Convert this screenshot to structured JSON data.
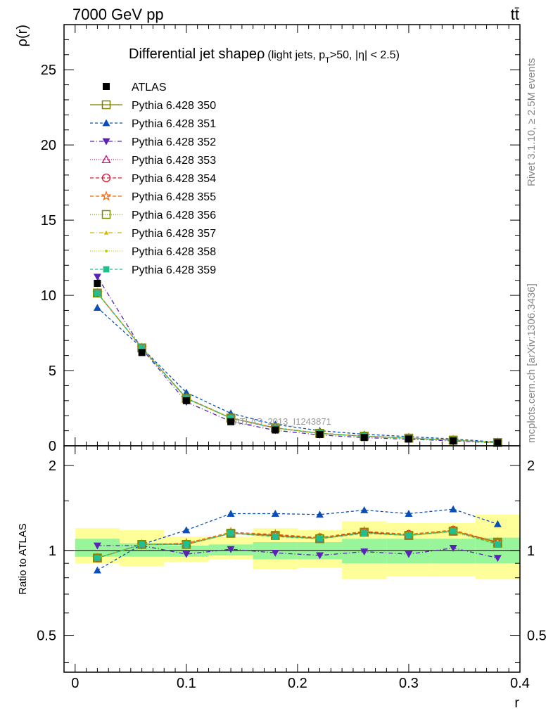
{
  "header": {
    "left": "7000 GeV pp",
    "right": "tt̄"
  },
  "side_labels": {
    "rivet": "Rivet 3.1.10, ≥ 2.5M events",
    "mcplots": "mcplots.cern.ch [arXiv:1306.3436]"
  },
  "chart_data": {
    "type": "line",
    "title_main": "Differential jet shape",
    "title_rho": "ρ",
    "title_detail_a": "(light jets, p",
    "title_detail_sub": "T",
    "title_detail_b": ">50, |η| < 2.5)",
    "watermark": "ATLAS_2013_I1243871",
    "ylabel": "ρ(r)",
    "xlabel": "r",
    "ratio_ylabel": "Ratio to ATLAS",
    "xlim": [
      -0.01,
      0.4
    ],
    "ylim": [
      0,
      28
    ],
    "ratio_ylim": [
      0.37,
      2.35
    ],
    "x_ticks": [
      "0",
      "0.1",
      "0.2",
      "0.3",
      "0.4"
    ],
    "y_ticks": [
      "0",
      "5",
      "10",
      "15",
      "20",
      "25"
    ],
    "ratio_ticks": [
      "0.5",
      "1",
      "2"
    ],
    "bin_edges": [
      0,
      0.04,
      0.08,
      0.12,
      0.16,
      0.2,
      0.24,
      0.28,
      0.32,
      0.36,
      0.4
    ],
    "x": [
      0.02,
      0.06,
      0.1,
      0.14,
      0.18,
      0.22,
      0.26,
      0.3,
      0.34,
      0.38
    ],
    "data": {
      "name": "ATLAS",
      "values": [
        10.8,
        6.2,
        3.0,
        1.6,
        1.05,
        0.75,
        0.55,
        0.45,
        0.32,
        0.2
      ],
      "band_inner": [
        [
          0.95,
          1.1
        ],
        [
          0.95,
          1.06
        ],
        [
          0.95,
          1.04
        ],
        [
          0.96,
          1.05
        ],
        [
          0.93,
          1.07
        ],
        [
          0.93,
          1.07
        ],
        [
          0.9,
          1.1
        ],
        [
          0.9,
          1.1
        ],
        [
          0.9,
          1.1
        ],
        [
          0.9,
          1.11
        ]
      ],
      "band_outer": [
        [
          0.9,
          1.2
        ],
        [
          0.88,
          1.18
        ],
        [
          0.91,
          1.12
        ],
        [
          0.93,
          1.12
        ],
        [
          0.86,
          1.2
        ],
        [
          0.87,
          1.18
        ],
        [
          0.79,
          1.27
        ],
        [
          0.81,
          1.25
        ],
        [
          0.81,
          1.25
        ],
        [
          0.79,
          1.34
        ]
      ]
    },
    "series": [
      {
        "name": "Pythia 6.428 350",
        "color": "#7f7f00",
        "dash": "",
        "marker": "square-open",
        "ratio": [
          0.94,
          1.05,
          1.05,
          1.15,
          1.13,
          1.1,
          1.16,
          1.13,
          1.17,
          1.07
        ]
      },
      {
        "name": "Pythia 6.428 351",
        "color": "#0a4fb8",
        "dash": "4,3",
        "marker": "triangle-up",
        "ratio": [
          0.85,
          1.05,
          1.18,
          1.35,
          1.35,
          1.34,
          1.39,
          1.35,
          1.4,
          1.24
        ]
      },
      {
        "name": "Pythia 6.428 352",
        "color": "#5a22b5",
        "dash": "6,3,1,3",
        "marker": "triangle-down",
        "ratio": [
          1.04,
          1.04,
          0.97,
          1.01,
          0.98,
          0.96,
          0.99,
          0.97,
          1.02,
          0.94
        ]
      },
      {
        "name": "Pythia 6.428 353",
        "color": "#c0177a",
        "dash": "1,2",
        "marker": "triangle-open",
        "ratio": [
          0.94,
          1.05,
          1.06,
          1.15,
          1.13,
          1.1,
          1.16,
          1.13,
          1.17,
          1.07
        ]
      },
      {
        "name": "Pythia 6.428 354",
        "color": "#e0102a",
        "dash": "5,3",
        "marker": "circle-open",
        "ratio": [
          0.94,
          1.05,
          1.05,
          1.15,
          1.13,
          1.11,
          1.16,
          1.14,
          1.18,
          1.06
        ]
      },
      {
        "name": "Pythia 6.428 355",
        "color": "#ef6a10",
        "dash": "5,3",
        "marker": "star-open",
        "ratio": [
          0.94,
          1.05,
          1.06,
          1.16,
          1.14,
          1.11,
          1.17,
          1.14,
          1.18,
          1.07
        ]
      },
      {
        "name": "Pythia 6.428 356",
        "color": "#7f8f00",
        "dash": "1,2",
        "marker": "square-open",
        "ratio": [
          0.94,
          1.05,
          1.05,
          1.15,
          1.13,
          1.1,
          1.16,
          1.13,
          1.17,
          1.06
        ]
      },
      {
        "name": "Pythia 6.428 357",
        "color": "#d6b800",
        "dash": "6,3,1,3",
        "marker": "tri-small",
        "ratio": [
          0.94,
          1.05,
          1.05,
          1.15,
          1.12,
          1.1,
          1.15,
          1.13,
          1.17,
          1.06
        ]
      },
      {
        "name": "Pythia 6.428 358",
        "color": "#b7d400",
        "dash": "1,2",
        "marker": "dot",
        "ratio": [
          0.94,
          1.05,
          1.05,
          1.15,
          1.12,
          1.1,
          1.15,
          1.13,
          1.16,
          1.05
        ]
      },
      {
        "name": "Pythia 6.428 359",
        "color": "#1fbf8f",
        "dash": "4,3",
        "marker": "square-filled",
        "ratio": [
          0.94,
          1.05,
          1.05,
          1.15,
          1.12,
          1.1,
          1.15,
          1.13,
          1.17,
          1.05
        ]
      }
    ]
  }
}
